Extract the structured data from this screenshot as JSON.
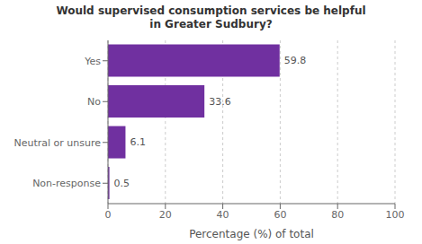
{
  "chart_data": {
    "type": "bar",
    "title": "Would supervised consumption services be helpful\nin Greater Sudbury?",
    "categories": [
      "Yes",
      "No",
      "Neutral or unsure",
      "Non-response"
    ],
    "values": [
      59.8,
      33.6,
      6.1,
      0.5
    ],
    "color": "#7030A0",
    "orientation": "horizontal",
    "xlabel": "Percentage (%) of total",
    "xlim": [
      0,
      100
    ],
    "xticks": [
      0,
      20,
      40,
      60,
      80,
      100
    ],
    "grid": true,
    "data_labels": true
  }
}
